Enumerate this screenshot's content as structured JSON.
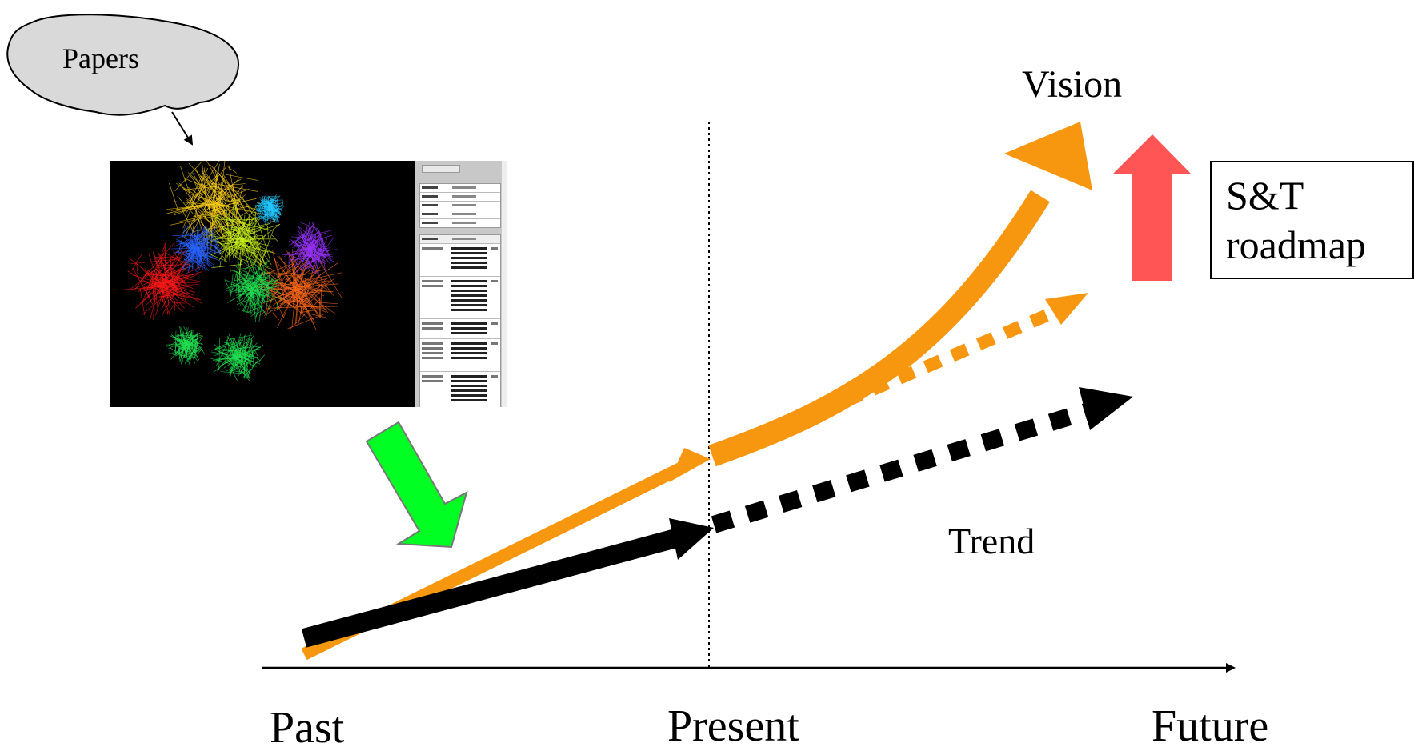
{
  "labels": {
    "papers": "Papers",
    "vision": "Vision",
    "trend": "Trend",
    "past": "Past",
    "present": "Present",
    "future": "Future",
    "roadmap_line1": "S&T",
    "roadmap_line2": "roadmap"
  },
  "colors": {
    "orange": "#f7970f",
    "black": "#000000",
    "green": "#00ff22",
    "red": "#ff5555",
    "cloud_fill": "#d9d9d9",
    "network_clusters": [
      "#ff1a1a",
      "#ffd21a",
      "#c9f21a",
      "#ff6a1a",
      "#22c7ff",
      "#22e052",
      "#9a33ff",
      "#2a63ff"
    ]
  },
  "icons": {
    "papers_shape": "cloud-shape",
    "screenshot": "citation-network-screenshot",
    "down_arrow": "green-down-arrow",
    "up_arrow": "red-up-arrow"
  }
}
